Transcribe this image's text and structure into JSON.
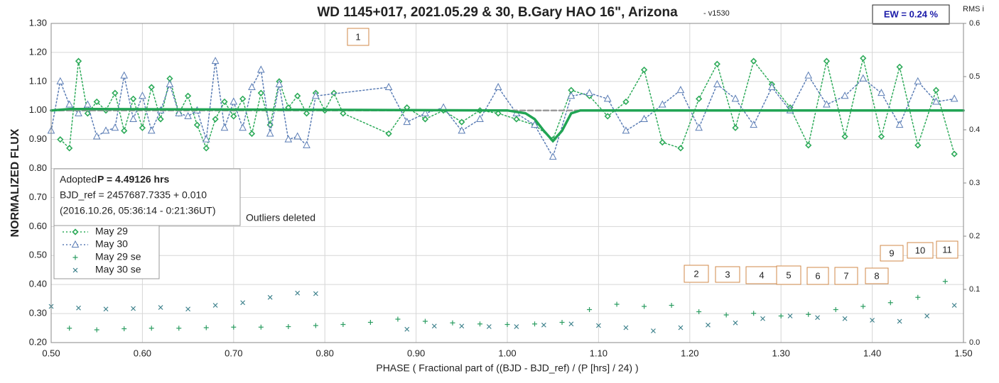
{
  "chart_data": {
    "type": "scatter",
    "title": "WD 1145+017, 2021.05.29 & 30, B.Gary HAO 16\", Arizona",
    "title_suffix": "- v1530",
    "ew_label": "EW = 0.24 %",
    "y2_label": "RMS i",
    "x_label": "PHASE ( Fractional part of ((BJD - BJD_ref) / (P [hrs] / 24) )",
    "y_label": "NORMALIZED FLUX",
    "info": {
      "prefix": "Adopted",
      "period": "P = 4.49126 hrs",
      "lines": [
        "BJD_ref = 2457687.7335 + 0.010",
        "(2016.10.26, 05:36:14 - 0:21:36UT)"
      ]
    },
    "note": "Outliers deleted",
    "annotations": [
      "1",
      "2",
      "3",
      "4",
      "5",
      "6",
      "7",
      "8",
      "9",
      "10",
      "11"
    ],
    "xlim": [
      0.5,
      1.5
    ],
    "xticks": [
      {
        "value": 0.5,
        "label": "0.50"
      },
      {
        "value": 0.6,
        "label": "0.60"
      },
      {
        "value": 0.7,
        "label": "0.70"
      },
      {
        "value": 0.8,
        "label": "0.80"
      },
      {
        "value": 0.9,
        "label": "0.90"
      },
      {
        "value": 1.0,
        "label": "1.00"
      },
      {
        "value": 1.1,
        "label": "1.10"
      },
      {
        "value": 1.2,
        "label": "1.20"
      },
      {
        "value": 1.3,
        "label": "1.30"
      },
      {
        "value": 1.4,
        "label": "1.40"
      },
      {
        "value": 1.5,
        "label": "1.50"
      }
    ],
    "ylim": [
      0.2,
      1.3
    ],
    "yticks": [
      {
        "value": 0.2,
        "label": "0.20"
      },
      {
        "value": 0.3,
        "label": "0.30"
      },
      {
        "value": 0.4,
        "label": "0.40"
      },
      {
        "value": 0.5,
        "label": "0.50"
      },
      {
        "value": 0.6,
        "label": "0.60"
      },
      {
        "value": 0.7,
        "label": "0.70"
      },
      {
        "value": 0.8,
        "label": "0.80"
      },
      {
        "value": 0.9,
        "label": "0.90"
      },
      {
        "value": 1.0,
        "label": "1.00"
      },
      {
        "value": 1.1,
        "label": "1.10"
      },
      {
        "value": 1.2,
        "label": "1.20"
      },
      {
        "value": 1.3,
        "label": "1.30"
      }
    ],
    "y2lim": [
      0,
      0.6
    ],
    "y2ticks": [
      {
        "value": 0,
        "label": "0.0"
      },
      0.1,
      0.2,
      0.3,
      0.4,
      0.5,
      0.6
    ],
    "grid": true,
    "series": [
      {
        "name": "May 29",
        "color": "#2eab5a",
        "marker": "diamond",
        "line": "dotted",
        "x": [
          0.51,
          0.52,
          0.53,
          0.54,
          0.55,
          0.56,
          0.57,
          0.58,
          0.59,
          0.6,
          0.61,
          0.62,
          0.63,
          0.64,
          0.65,
          0.66,
          0.67,
          0.68,
          0.69,
          0.7,
          0.71,
          0.72,
          0.73,
          0.74,
          0.75,
          0.76,
          0.77,
          0.78,
          0.79,
          0.8,
          0.81,
          0.82,
          0.87,
          0.89,
          0.91,
          0.93,
          0.95,
          0.97,
          0.99,
          1.01,
          1.03,
          1.05,
          1.07,
          1.09,
          1.11,
          1.13,
          1.15,
          1.17,
          1.19,
          1.21,
          1.23,
          1.25,
          1.27,
          1.29,
          1.31,
          1.33,
          1.35,
          1.37,
          1.39,
          1.41,
          1.43,
          1.45,
          1.47,
          1.49
        ],
        "values": [
          0.9,
          0.87,
          1.17,
          0.99,
          1.03,
          1.0,
          1.06,
          0.93,
          1.04,
          0.94,
          1.08,
          0.97,
          1.11,
          0.99,
          1.05,
          0.95,
          0.87,
          0.97,
          1.03,
          0.98,
          1.04,
          0.92,
          1.06,
          0.95,
          1.1,
          1.01,
          1.05,
          0.99,
          1.06,
          1.0,
          1.06,
          0.99,
          0.92,
          1.01,
          0.97,
          1.0,
          0.96,
          1.0,
          0.99,
          0.97,
          0.95,
          0.9,
          1.07,
          1.05,
          0.98,
          1.03,
          1.14,
          0.89,
          0.87,
          1.04,
          1.16,
          0.94,
          1.17,
          1.09,
          1.01,
          0.88,
          1.17,
          0.91,
          1.18,
          0.91,
          1.15,
          0.88,
          1.07,
          0.85
        ]
      },
      {
        "name": "May 30",
        "color": "#5b7db5",
        "marker": "triangle",
        "line": "dotted",
        "x": [
          0.5,
          0.51,
          0.52,
          0.53,
          0.54,
          0.55,
          0.56,
          0.57,
          0.58,
          0.59,
          0.6,
          0.61,
          0.62,
          0.63,
          0.64,
          0.65,
          0.66,
          0.67,
          0.68,
          0.69,
          0.7,
          0.71,
          0.72,
          0.73,
          0.74,
          0.75,
          0.76,
          0.77,
          0.78,
          0.79,
          0.87,
          0.89,
          0.91,
          0.93,
          0.95,
          0.97,
          0.99,
          1.01,
          1.03,
          1.05,
          1.07,
          1.09,
          1.11,
          1.13,
          1.15,
          1.17,
          1.19,
          1.21,
          1.23,
          1.25,
          1.27,
          1.29,
          1.31,
          1.33,
          1.35,
          1.37,
          1.39,
          1.41,
          1.43,
          1.45,
          1.47,
          1.49
        ],
        "values": [
          0.93,
          1.1,
          1.02,
          0.99,
          1.02,
          0.91,
          0.93,
          0.94,
          1.12,
          0.97,
          1.05,
          0.93,
          1.0,
          1.09,
          0.99,
          0.98,
          1.0,
          0.9,
          1.17,
          0.94,
          1.03,
          0.94,
          1.08,
          1.14,
          0.92,
          1.09,
          0.9,
          0.91,
          0.88,
          1.05,
          1.08,
          0.96,
          0.99,
          1.01,
          0.93,
          0.97,
          1.08,
          0.99,
          0.95,
          0.84,
          1.05,
          1.06,
          1.04,
          0.93,
          0.97,
          1.02,
          1.07,
          0.94,
          1.09,
          1.04,
          0.95,
          1.08,
          1.0,
          1.12,
          1.02,
          1.05,
          1.11,
          1.06,
          0.95,
          1.1,
          1.03,
          1.04
        ]
      },
      {
        "name": "May 29 se",
        "color": "#2e9e63",
        "marker": "plus",
        "axis": "y2",
        "x": [
          0.52,
          0.55,
          0.58,
          0.61,
          0.64,
          0.67,
          0.7,
          0.73,
          0.76,
          0.79,
          0.82,
          0.85,
          0.88,
          0.91,
          0.94,
          0.97,
          1.0,
          1.03,
          1.06,
          1.09,
          1.12,
          1.15,
          1.18,
          1.21,
          1.24,
          1.27,
          1.3,
          1.33,
          1.36,
          1.39,
          1.42,
          1.45,
          1.48
        ],
        "values": [
          0.027,
          0.024,
          0.026,
          0.027,
          0.027,
          0.028,
          0.029,
          0.029,
          0.03,
          0.032,
          0.034,
          0.038,
          0.044,
          0.04,
          0.037,
          0.035,
          0.034,
          0.035,
          0.038,
          0.062,
          0.072,
          0.068,
          0.07,
          0.058,
          0.052,
          0.055,
          0.05,
          0.053,
          0.062,
          0.068,
          0.075,
          0.085,
          0.115
        ]
      },
      {
        "name": "May 30 se",
        "color": "#3a7f8a",
        "marker": "cross",
        "axis": "y2",
        "x": [
          0.5,
          0.53,
          0.56,
          0.59,
          0.62,
          0.65,
          0.68,
          0.71,
          0.74,
          0.77,
          0.79,
          0.89,
          0.92,
          0.95,
          0.98,
          1.01,
          1.04,
          1.07,
          1.1,
          1.13,
          1.16,
          1.19,
          1.22,
          1.25,
          1.28,
          1.31,
          1.34,
          1.37,
          1.4,
          1.43,
          1.46,
          1.49
        ],
        "values": [
          0.068,
          0.065,
          0.063,
          0.064,
          0.066,
          0.063,
          0.07,
          0.075,
          0.085,
          0.093,
          0.092,
          0.025,
          0.031,
          0.031,
          0.03,
          0.03,
          0.033,
          0.035,
          0.032,
          0.028,
          0.022,
          0.028,
          0.033,
          0.037,
          0.045,
          0.05,
          0.047,
          0.045,
          0.042,
          0.04,
          0.05,
          0.07
        ]
      },
      {
        "color": "#9a9a9a",
        "line": "dashed",
        "x": [
          0.5,
          1.5
        ],
        "values": [
          1.0,
          1.0
        ]
      },
      {
        "color": "#21a454",
        "line": "solid",
        "x": [
          0.5,
          0.52,
          1.0,
          1.02,
          1.03,
          1.04,
          1.05,
          1.06,
          1.07,
          1.08,
          1.5
        ],
        "values": [
          1.0,
          1.005,
          1.0,
          0.99,
          0.97,
          0.93,
          0.895,
          0.93,
          0.99,
          1.0,
          1.0
        ]
      }
    ]
  }
}
